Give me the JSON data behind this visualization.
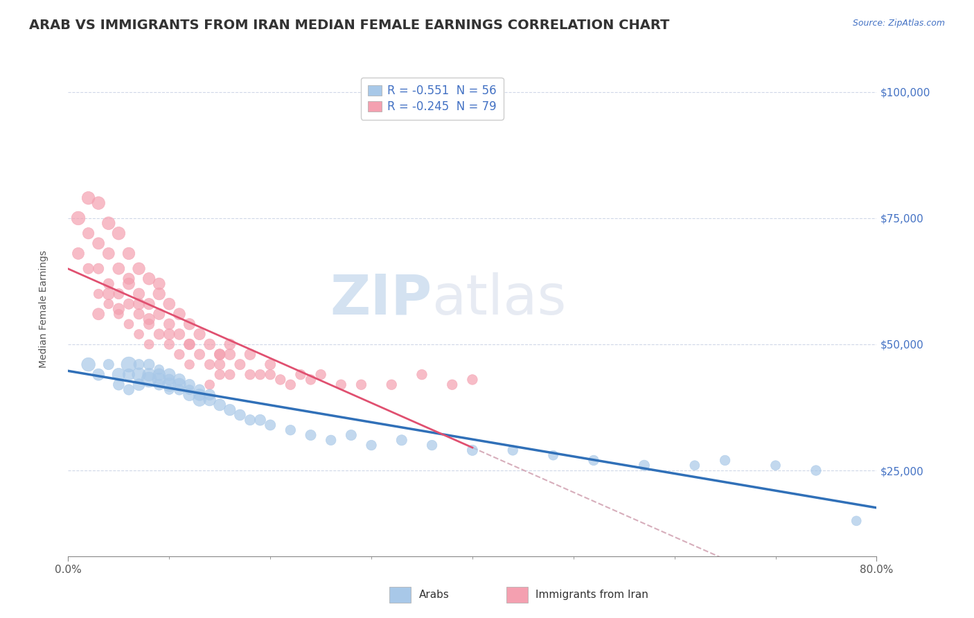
{
  "title": "ARAB VS IMMIGRANTS FROM IRAN MEDIAN FEMALE EARNINGS CORRELATION CHART",
  "source": "Source: ZipAtlas.com",
  "ylabel": "Median Female Earnings",
  "legend1_label": "Arabs",
  "legend2_label": "Immigrants from Iran",
  "R1": -0.551,
  "N1": 56,
  "R2": -0.245,
  "N2": 79,
  "color_arab": "#a8c8e8",
  "color_iran": "#f4a0b0",
  "color_trendline_arab": "#3070b8",
  "color_trendline_iran": "#e05070",
  "color_dashed": "#d0a0b0",
  "color_ytick": "#4472c4",
  "color_grid": "#d0d8e8",
  "xmin": 0.0,
  "xmax": 0.8,
  "ymin": 8000,
  "ymax": 106000,
  "yticks": [
    25000,
    50000,
    75000,
    100000
  ],
  "ytick_labels": [
    "$25,000",
    "$50,000",
    "$75,000",
    "$100,000"
  ],
  "xticks": [
    0.0,
    0.8
  ],
  "xtick_labels": [
    "0.0%",
    "80.0%"
  ],
  "watermark_zip": "ZIP",
  "watermark_atlas": "atlas",
  "title_fontsize": 14,
  "axis_label_fontsize": 10,
  "tick_fontsize": 11,
  "arab_x": [
    0.02,
    0.03,
    0.04,
    0.05,
    0.05,
    0.06,
    0.06,
    0.06,
    0.07,
    0.07,
    0.07,
    0.08,
    0.08,
    0.08,
    0.09,
    0.09,
    0.09,
    0.09,
    0.1,
    0.1,
    0.1,
    0.1,
    0.11,
    0.11,
    0.11,
    0.12,
    0.12,
    0.12,
    0.13,
    0.13,
    0.13,
    0.14,
    0.14,
    0.15,
    0.16,
    0.17,
    0.18,
    0.19,
    0.2,
    0.22,
    0.24,
    0.26,
    0.28,
    0.3,
    0.33,
    0.36,
    0.4,
    0.44,
    0.48,
    0.52,
    0.57,
    0.62,
    0.65,
    0.7,
    0.74,
    0.78
  ],
  "arab_y": [
    46000,
    44000,
    46000,
    44000,
    42000,
    46000,
    44000,
    41000,
    44000,
    42000,
    46000,
    43000,
    44000,
    46000,
    43000,
    44000,
    42000,
    45000,
    42000,
    44000,
    43000,
    41000,
    42000,
    43000,
    41000,
    40000,
    42000,
    41000,
    39000,
    40000,
    41000,
    39000,
    40000,
    38000,
    37000,
    36000,
    35000,
    35000,
    34000,
    33000,
    32000,
    31000,
    32000,
    30000,
    31000,
    30000,
    29000,
    29000,
    28000,
    27000,
    26000,
    26000,
    27000,
    26000,
    25000,
    15000
  ],
  "arab_size": [
    200,
    150,
    120,
    180,
    130,
    250,
    150,
    120,
    200,
    150,
    120,
    250,
    180,
    130,
    200,
    160,
    130,
    100,
    200,
    160,
    130,
    100,
    180,
    150,
    120,
    160,
    130,
    100,
    180,
    150,
    120,
    160,
    130,
    150,
    140,
    130,
    120,
    130,
    120,
    110,
    120,
    110,
    120,
    110,
    120,
    110,
    120,
    110,
    100,
    110,
    120,
    100,
    110,
    100,
    110,
    100
  ],
  "iran_x": [
    0.01,
    0.01,
    0.02,
    0.02,
    0.02,
    0.03,
    0.03,
    0.03,
    0.03,
    0.04,
    0.04,
    0.04,
    0.04,
    0.05,
    0.05,
    0.05,
    0.05,
    0.06,
    0.06,
    0.06,
    0.06,
    0.07,
    0.07,
    0.07,
    0.07,
    0.08,
    0.08,
    0.08,
    0.08,
    0.09,
    0.09,
    0.09,
    0.1,
    0.1,
    0.1,
    0.11,
    0.11,
    0.11,
    0.12,
    0.12,
    0.12,
    0.13,
    0.13,
    0.14,
    0.14,
    0.14,
    0.15,
    0.15,
    0.15,
    0.16,
    0.16,
    0.17,
    0.18,
    0.18,
    0.19,
    0.2,
    0.21,
    0.22,
    0.23,
    0.24,
    0.25,
    0.27,
    0.29,
    0.32,
    0.35,
    0.38,
    0.4,
    0.09,
    0.16,
    0.2,
    0.03,
    0.04,
    0.05,
    0.06,
    0.07,
    0.08,
    0.1,
    0.12,
    0.15
  ],
  "iran_y": [
    75000,
    68000,
    79000,
    72000,
    65000,
    78000,
    70000,
    65000,
    60000,
    74000,
    68000,
    62000,
    58000,
    72000,
    65000,
    60000,
    56000,
    68000,
    63000,
    58000,
    54000,
    65000,
    60000,
    56000,
    52000,
    63000,
    58000,
    54000,
    50000,
    60000,
    56000,
    52000,
    58000,
    54000,
    50000,
    56000,
    52000,
    48000,
    54000,
    50000,
    46000,
    52000,
    48000,
    50000,
    46000,
    42000,
    48000,
    44000,
    46000,
    48000,
    44000,
    46000,
    44000,
    48000,
    44000,
    44000,
    43000,
    42000,
    44000,
    43000,
    44000,
    42000,
    42000,
    42000,
    44000,
    42000,
    43000,
    62000,
    50000,
    46000,
    56000,
    60000,
    57000,
    62000,
    58000,
    55000,
    52000,
    50000,
    48000
  ],
  "iran_size": [
    200,
    150,
    180,
    140,
    120,
    180,
    150,
    120,
    100,
    180,
    150,
    120,
    100,
    180,
    150,
    120,
    100,
    160,
    140,
    120,
    100,
    160,
    140,
    120,
    100,
    160,
    140,
    120,
    100,
    160,
    140,
    120,
    150,
    130,
    110,
    150,
    130,
    110,
    140,
    120,
    100,
    140,
    120,
    130,
    110,
    100,
    130,
    110,
    120,
    130,
    110,
    120,
    110,
    130,
    110,
    110,
    110,
    110,
    110,
    110,
    110,
    110,
    110,
    110,
    110,
    110,
    110,
    150,
    130,
    120,
    150,
    150,
    140,
    150,
    140,
    140,
    130,
    130,
    120
  ]
}
